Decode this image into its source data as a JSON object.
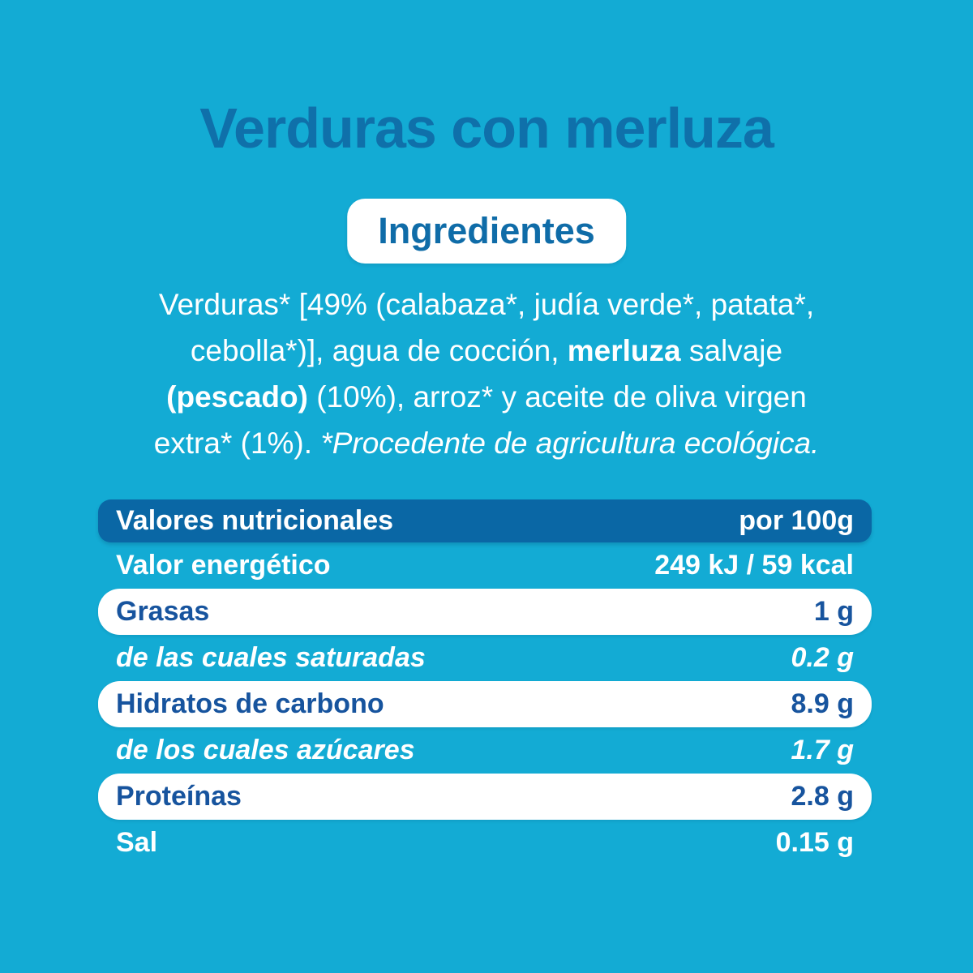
{
  "page": {
    "title": "Verduras con merluza",
    "ingredients_heading": "Ingredientes"
  },
  "ingredients": {
    "line1": "Verduras* [49% (calabaza*, judía verde*, patata*,",
    "line2a": "cebolla*)], agua de cocción, ",
    "line2b": "merluza",
    "line2c": " salvaje",
    "line3a": "(pescado)",
    "line3b": " (10%), arroz* y aceite de oliva virgen",
    "line4a": "extra* (1%). ",
    "line4b": "*Procedente de agricultura ecológica."
  },
  "nutrition": {
    "header": {
      "label": "Valores nutricionales",
      "per": "por 100g"
    },
    "rows": [
      {
        "label": "Valor energético",
        "value": "249 kJ / 59 kcal"
      },
      {
        "label": "Grasas",
        "value": "1 g"
      },
      {
        "label": "de las cuales saturadas",
        "value": "0.2 g"
      },
      {
        "label": "Hidratos de carbono",
        "value": "8.9 g"
      },
      {
        "label": "de los cuales azúcares",
        "value": "1.7 g"
      },
      {
        "label": "Proteínas",
        "value": "2.8 g"
      },
      {
        "label": "Sal",
        "value": "0.15 g"
      }
    ]
  },
  "colors": {
    "background_cyan": "#13abd4",
    "header_bar_blue": "#0a67a5",
    "title_blue": "#0f70aa",
    "row_text_blue": "#17549e",
    "text_white": "#ffffff"
  }
}
